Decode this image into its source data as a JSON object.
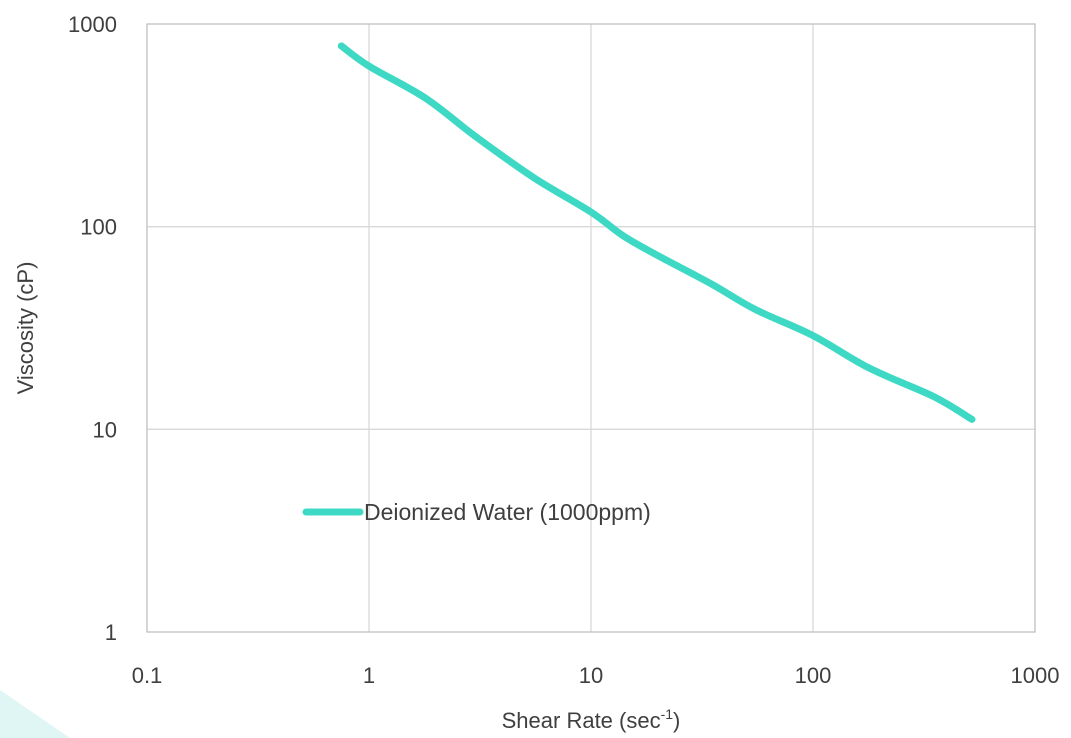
{
  "chart_data": {
    "type": "line",
    "title": "",
    "xlabel": "Shear Rate (sec",
    "xlabel_sup": "-1",
    "xlabel_suffix": ")",
    "ylabel": "Viscosity (cP)",
    "xscale": "log",
    "yscale": "log",
    "xlim": [
      0.1,
      1000
    ],
    "ylim": [
      1,
      1000
    ],
    "x_ticks": [
      "0.1",
      "1",
      "10",
      "100",
      "1000"
    ],
    "y_ticks": [
      "1",
      "10",
      "100",
      "1000"
    ],
    "grid": true,
    "legend_placement": "middle-left",
    "series": [
      {
        "name": "Deionized Water (1000ppm)",
        "color": "#3dd9c4",
        "x": [
          0.75,
          1.0,
          1.8,
          3.0,
          5.5,
          10,
          14,
          20,
          35,
          55,
          100,
          180,
          350,
          520
        ],
        "y": [
          780,
          620,
          430,
          280,
          175,
          118,
          90,
          72,
          52,
          39,
          29,
          20,
          14.5,
          11.2
        ]
      }
    ]
  },
  "accent_color": "#3dd9c4"
}
